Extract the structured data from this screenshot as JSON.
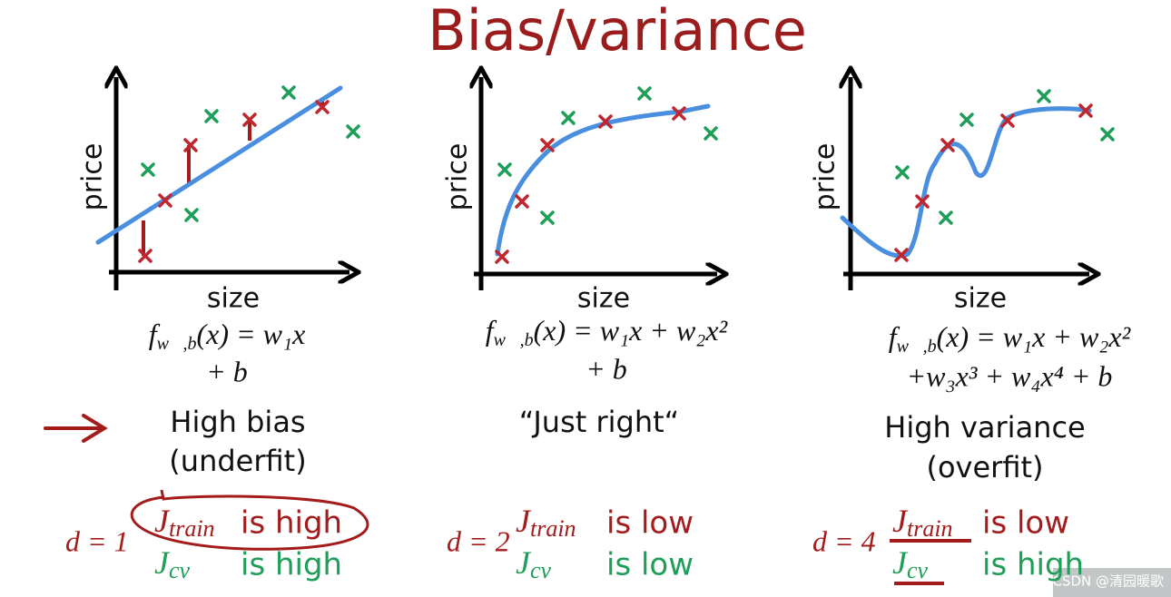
{
  "title": "Bias/variance",
  "panels": [
    {
      "y_label": "price",
      "x_label": "size",
      "formula": {
        "f": "f",
        "sub": "w⃗,b",
        "lines": [
          "(x) = w₁x",
          "+ b"
        ]
      },
      "verdict": [
        "High bias",
        "(underfit)"
      ],
      "degree": "d = 1",
      "j_train": {
        "symbol": "J",
        "sub": "train",
        "status": "is high"
      },
      "j_cv": {
        "symbol": "J",
        "sub": "cv",
        "status": "is high"
      }
    },
    {
      "y_label": "price",
      "x_label": "size",
      "formula": {
        "f": "f",
        "sub": "w⃗,b",
        "lines": [
          "(x) = w₁x + w₂x²",
          "+ b"
        ]
      },
      "verdict": [
        "“Just right“"
      ],
      "degree": "d = 2",
      "j_train": {
        "symbol": "J",
        "sub": "train",
        "status": "is low"
      },
      "j_cv": {
        "symbol": "J",
        "sub": "cv",
        "status": "is low"
      }
    },
    {
      "y_label": "price",
      "x_label": "size",
      "formula": {
        "f": "f",
        "sub": "w⃗,b",
        "lines": [
          "(x) = w₁x + w₂x²",
          "+w₃x³ + w₄x⁴ + b"
        ]
      },
      "verdict": [
        "High variance",
        "(overfit)"
      ],
      "degree": "d = 4",
      "j_train": {
        "symbol": "J",
        "sub": "train",
        "status": "is low"
      },
      "j_cv": {
        "symbol": "J",
        "sub": "cv",
        "status": "is high"
      }
    }
  ],
  "watermark": "CSDN @清园暖歌"
}
